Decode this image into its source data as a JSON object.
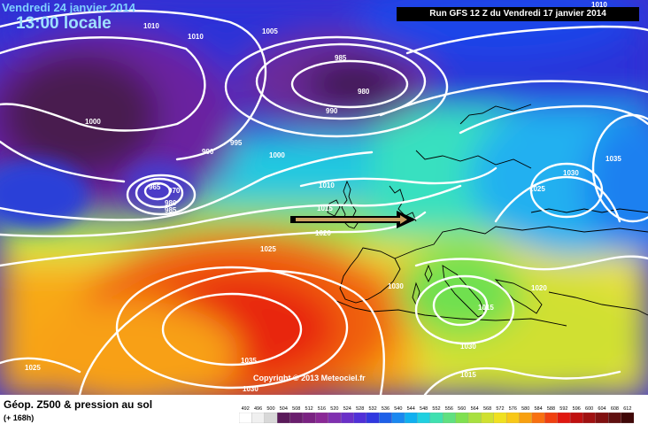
{
  "header": {
    "date": "Vendredi 24 janvier 2014",
    "time": "13:00 locale",
    "run": "Run GFS 12 Z du Vendredi 17 janvier 2014"
  },
  "copyright": "Copyright © 2013 Meteociel.fr",
  "legend": {
    "title": "Géop. Z500 & pression au sol",
    "subtitle": "(+ 168h)",
    "scale": [
      "492",
      "496",
      "500",
      "504",
      "508",
      "512",
      "516",
      "520",
      "524",
      "528",
      "532",
      "536",
      "540",
      "544",
      "548",
      "552",
      "556",
      "560",
      "564",
      "568",
      "572",
      "576",
      "580",
      "584",
      "588",
      "592",
      "596",
      "600",
      "604",
      "608",
      "612"
    ],
    "colors": [
      "#ffffff",
      "#f0f0f0",
      "#d8d8d8",
      "#5a1a5a",
      "#6a1e6e",
      "#7a2282",
      "#8a2896",
      "#8030b0",
      "#6a30c8",
      "#5030d8",
      "#3038e0",
      "#1e60e8",
      "#1a88f0",
      "#10b0f0",
      "#20d0e0",
      "#40e0b0",
      "#60e080",
      "#80e050",
      "#a8e040",
      "#d0e030",
      "#f0e020",
      "#f8c818",
      "#f8a010",
      "#f87010",
      "#f04010",
      "#e01810",
      "#c01010",
      "#a01010",
      "#801010",
      "#601010",
      "#400808"
    ]
  },
  "isobars": [
    "1010",
    "1010",
    "1005",
    "985",
    "980",
    "990",
    "1000",
    "990",
    "995",
    "1000",
    "965",
    "970",
    "980",
    "985",
    "1010",
    "1015",
    "1020",
    "1025",
    "1030",
    "1035",
    "1030",
    "1025",
    "1030",
    "1035",
    "1020",
    "1015",
    "1015",
    "1025",
    "1030",
    "1010"
  ],
  "icons": [
    "arrow-icon"
  ]
}
